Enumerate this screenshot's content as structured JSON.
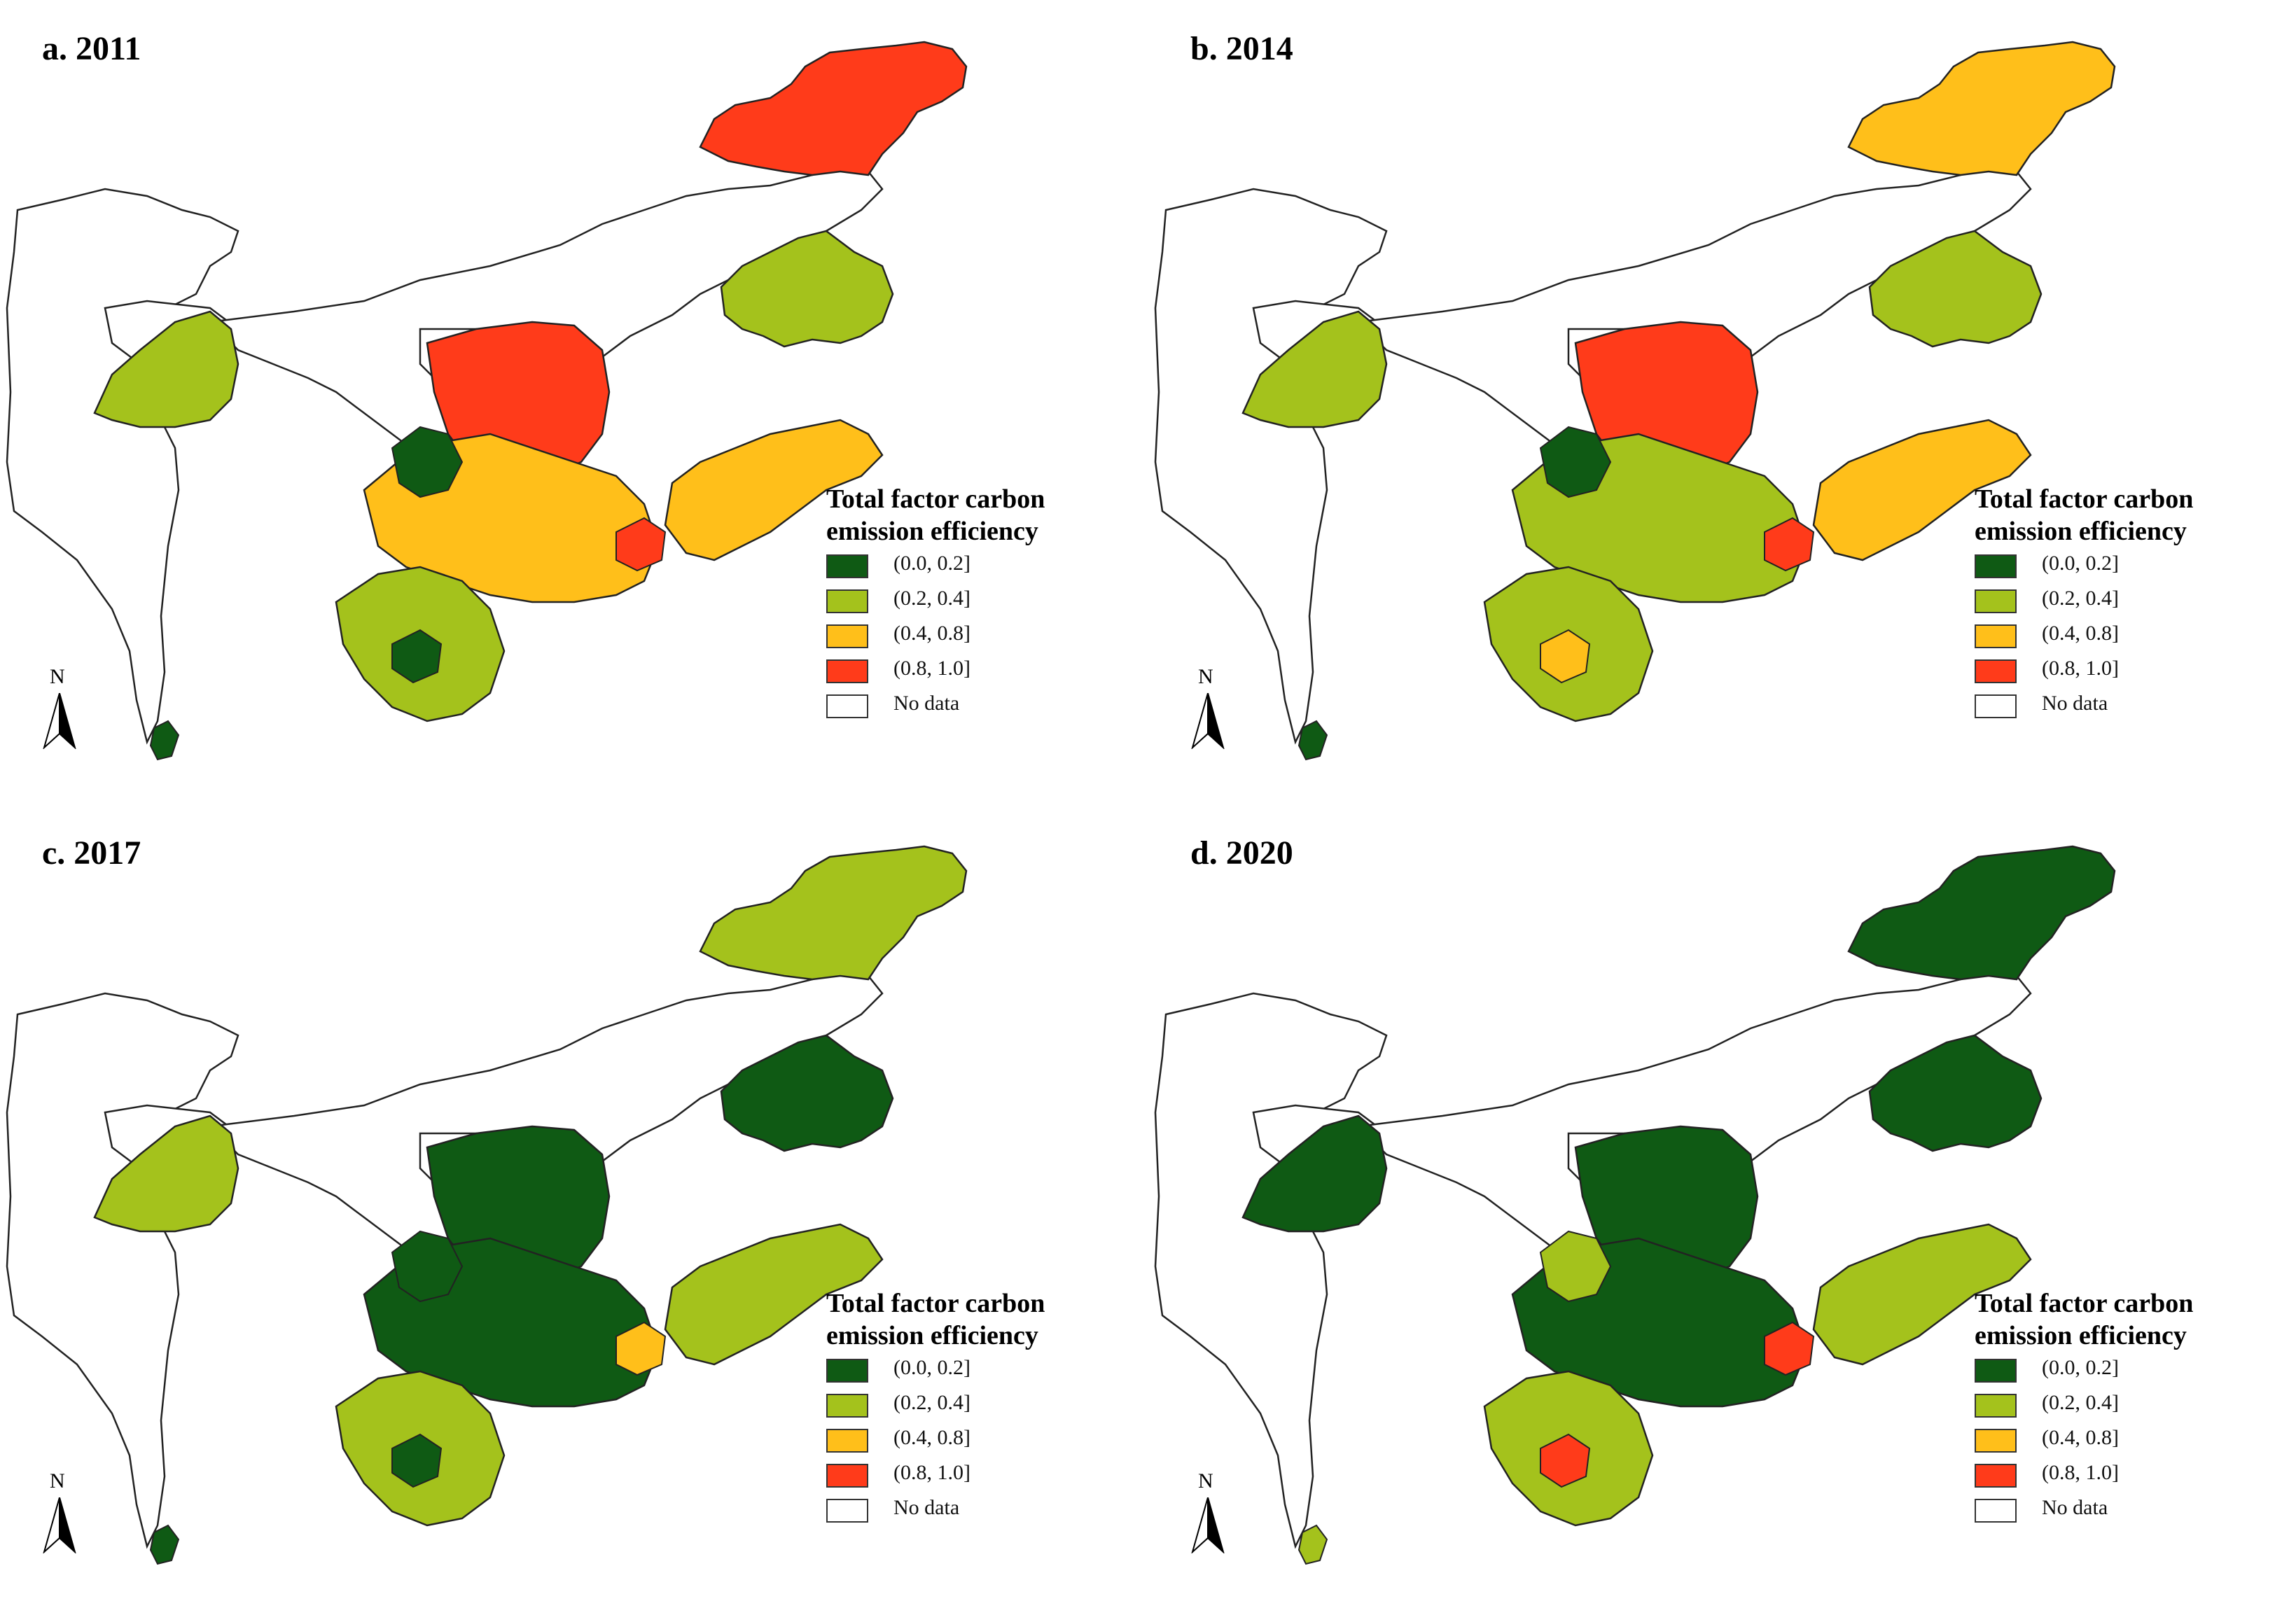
{
  "figure": {
    "panels": [
      {
        "title": "a. 2011",
        "fills": {
          "far_ne": "#ff3b1a",
          "ne_mid": "#a4c21c",
          "west_arm": "#a4c21c",
          "north_center": "#ff3b1a",
          "center_block": "#ffbf1a",
          "east_block": "#ffbf1a",
          "south_block": "#a4c21c",
          "accent1": "#0f5a14",
          "accent2": "#ff3b1a",
          "accent3": "#0f5a14"
        }
      },
      {
        "title": "b. 2014",
        "fills": {
          "far_ne": "#ffbf1a",
          "ne_mid": "#a4c21c",
          "west_arm": "#a4c21c",
          "north_center": "#ff3b1a",
          "center_block": "#a4c21c",
          "east_block": "#ffbf1a",
          "south_block": "#a4c21c",
          "accent1": "#0f5a14",
          "accent2": "#ff3b1a",
          "accent3": "#ffbf1a"
        }
      },
      {
        "title": "c. 2017",
        "fills": {
          "far_ne": "#a4c21c",
          "ne_mid": "#0f5a14",
          "west_arm": "#a4c21c",
          "north_center": "#0f5a14",
          "center_block": "#0f5a14",
          "east_block": "#a4c21c",
          "south_block": "#a4c21c",
          "accent1": "#0f5a14",
          "accent2": "#ffbf1a",
          "accent3": "#0f5a14"
        }
      },
      {
        "title": "d. 2020",
        "fills": {
          "far_ne": "#0f5a14",
          "ne_mid": "#0f5a14",
          "west_arm": "#0f5a14",
          "north_center": "#0f5a14",
          "center_block": "#0f5a14",
          "east_block": "#a4c21c",
          "south_block": "#a4c21c",
          "accent1": "#a4c21c",
          "accent2": "#ff3b1a",
          "accent3": "#ff3b1a"
        }
      }
    ],
    "legend": {
      "title_line1": "Total factor carbon",
      "title_line2": "emission efficiency",
      "items": [
        {
          "label": "(0.0, 0.2]",
          "color": "#0f5a14"
        },
        {
          "label": "(0.2, 0.4]",
          "color": "#a4c21c"
        },
        {
          "label": "(0.4, 0.8]",
          "color": "#ffbf1a"
        },
        {
          "label": "(0.8, 1.0]",
          "color": "#ff3b1a"
        },
        {
          "label": "No data",
          "color": "#ffffff"
        }
      ]
    },
    "north_arrow": {
      "letter": "N"
    }
  }
}
